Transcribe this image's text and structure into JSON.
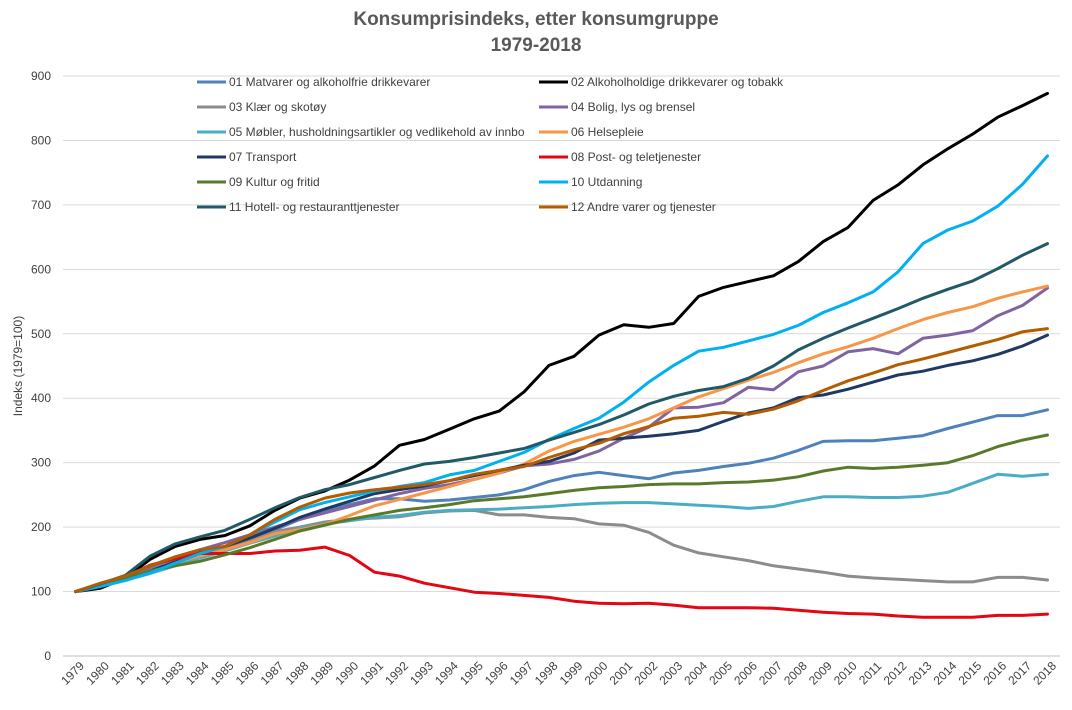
{
  "chart_data": {
    "type": "line",
    "title": "Konsumprisindeks, etter konsumgruppe",
    "subtitle": "1979-2018",
    "ylabel": "Indeks (1979=100)",
    "xlabel": "",
    "ylim": [
      0,
      900
    ],
    "yticks": [
      0,
      100,
      200,
      300,
      400,
      500,
      600,
      700,
      800,
      900
    ],
    "grid": true,
    "legend_position": "top",
    "x": [
      1979,
      1980,
      1981,
      1982,
      1983,
      1984,
      1985,
      1986,
      1987,
      1988,
      1989,
      1990,
      1991,
      1992,
      1993,
      1994,
      1995,
      1996,
      1997,
      1998,
      1999,
      2000,
      2001,
      2002,
      2003,
      2004,
      2005,
      2006,
      2007,
      2008,
      2009,
      2010,
      2011,
      2012,
      2013,
      2014,
      2015,
      2016,
      2017,
      2018
    ],
    "series": [
      {
        "name": "01 Matvarer og alkoholfrie drikkevarer",
        "color": "#4f81bd",
        "values": [
          100,
          110,
          121,
          136,
          148,
          161,
          168,
          180,
          196,
          212,
          224,
          235,
          244,
          244,
          240,
          242,
          246,
          250,
          258,
          271,
          280,
          285,
          280,
          275,
          284,
          288,
          294,
          299,
          307,
          319,
          333,
          334,
          334,
          338,
          342,
          353,
          363,
          373,
          373,
          382
        ]
      },
      {
        "name": "02 Alkoholholdige drikkevarer og tobakk",
        "color": "#000000",
        "values": [
          100,
          105,
          121,
          150,
          170,
          181,
          187,
          202,
          226,
          245,
          256,
          273,
          295,
          327,
          336,
          352,
          368,
          380,
          410,
          451,
          465,
          498,
          514,
          510,
          516,
          558,
          572,
          581,
          590,
          612,
          643,
          665,
          707,
          731,
          762,
          787,
          810,
          836,
          854,
          873
        ]
      },
      {
        "name": "03 Klær og skotøy",
        "color": "#8c8c8c",
        "values": [
          100,
          110,
          120,
          136,
          148,
          160,
          170,
          180,
          193,
          200,
          208,
          212,
          214,
          216,
          222,
          225,
          226,
          219,
          219,
          215,
          213,
          205,
          203,
          192,
          172,
          160,
          154,
          148,
          140,
          135,
          130,
          124,
          121,
          119,
          117,
          115,
          115,
          122,
          122,
          118
        ]
      },
      {
        "name": "04 Bolig, lys og brensel",
        "color": "#8064a2",
        "values": [
          100,
          112,
          124,
          138,
          153,
          165,
          176,
          188,
          200,
          212,
          222,
          232,
          242,
          252,
          260,
          266,
          274,
          284,
          295,
          298,
          305,
          318,
          338,
          355,
          385,
          386,
          393,
          417,
          413,
          441,
          450,
          472,
          477,
          469,
          493,
          498,
          505,
          528,
          544,
          571
        ]
      },
      {
        "name": "05 Møbler, husholdningsartikler og vedlikehold av innbo",
        "color": "#4bacc6",
        "values": [
          100,
          108,
          118,
          128,
          140,
          152,
          163,
          175,
          186,
          198,
          205,
          210,
          215,
          218,
          223,
          226,
          227,
          228,
          230,
          232,
          235,
          237,
          238,
          238,
          236,
          234,
          232,
          229,
          232,
          240,
          247,
          247,
          246,
          246,
          248,
          254,
          268,
          282,
          279,
          282
        ]
      },
      {
        "name": "06 Helsepleie",
        "color": "#f79646",
        "values": [
          100,
          110,
          120,
          132,
          145,
          155,
          165,
          176,
          190,
          196,
          204,
          218,
          233,
          243,
          253,
          263,
          274,
          284,
          298,
          318,
          333,
          344,
          355,
          368,
          385,
          402,
          415,
          428,
          440,
          455,
          469,
          480,
          493,
          508,
          522,
          533,
          542,
          555,
          565,
          574
        ]
      },
      {
        "name": "07 Transport",
        "color": "#1f3864",
        "values": [
          100,
          110,
          120,
          132,
          146,
          160,
          170,
          183,
          198,
          215,
          228,
          240,
          252,
          258,
          264,
          272,
          280,
          288,
          296,
          302,
          315,
          335,
          338,
          341,
          345,
          350,
          364,
          377,
          385,
          401,
          405,
          414,
          425,
          436,
          442,
          451,
          458,
          468,
          481,
          498
        ]
      },
      {
        "name": "08 Post- og teletjenester",
        "color": "#e30613",
        "values": [
          100,
          112,
          123,
          141,
          151,
          159,
          159,
          159,
          163,
          164,
          169,
          156,
          130,
          124,
          113,
          106,
          99,
          97,
          94,
          91,
          85,
          82,
          81,
          82,
          79,
          75,
          75,
          75,
          74,
          71,
          68,
          66,
          65,
          62,
          60,
          60,
          60,
          63,
          63,
          65
        ]
      },
      {
        "name": "09 Kultur og fritid",
        "color": "#5a7a2b",
        "values": [
          100,
          110,
          121,
          132,
          140,
          147,
          157,
          168,
          181,
          194,
          203,
          212,
          219,
          226,
          230,
          235,
          241,
          244,
          247,
          252,
          257,
          261,
          263,
          266,
          267,
          267,
          269,
          270,
          273,
          278,
          287,
          293,
          291,
          293,
          296,
          300,
          311,
          325,
          335,
          343
        ]
      },
      {
        "name": "10 Utdanning",
        "color": "#00b0f0",
        "values": [
          100,
          108,
          117,
          129,
          144,
          159,
          170,
          188,
          208,
          227,
          238,
          247,
          256,
          263,
          269,
          281,
          288,
          302,
          316,
          336,
          353,
          369,
          394,
          425,
          451,
          473,
          479,
          489,
          499,
          513,
          533,
          548,
          565,
          596,
          640,
          661,
          675,
          698,
          732,
          776
        ]
      },
      {
        "name": "11 Hotell- og restauranttjenester",
        "color": "#215967",
        "values": [
          100,
          112,
          125,
          155,
          174,
          185,
          195,
          212,
          230,
          246,
          258,
          266,
          277,
          288,
          298,
          302,
          308,
          315,
          322,
          335,
          347,
          359,
          374,
          391,
          403,
          412,
          418,
          431,
          450,
          475,
          493,
          509,
          524,
          539,
          555,
          569,
          582,
          601,
          622,
          640
        ]
      },
      {
        "name": "12 Andre varer og tjenester",
        "color": "#b35c00",
        "values": [
          100,
          113,
          124,
          140,
          154,
          165,
          170,
          188,
          212,
          231,
          245,
          253,
          258,
          262,
          266,
          272,
          282,
          288,
          294,
          308,
          320,
          330,
          345,
          356,
          369,
          372,
          378,
          375,
          383,
          396,
          412,
          427,
          439,
          452,
          461,
          471,
          481,
          491,
          503,
          508
        ]
      }
    ]
  }
}
